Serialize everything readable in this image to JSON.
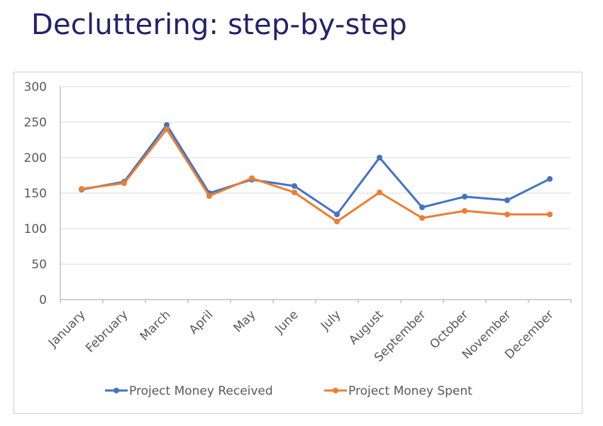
{
  "slide": {
    "title": "Decluttering: step-by-step"
  },
  "chart_data": {
    "type": "line",
    "categories": [
      "January",
      "February",
      "March",
      "April",
      "May",
      "June",
      "July",
      "August",
      "September",
      "October",
      "November",
      "December"
    ],
    "series": [
      {
        "name": "Project Money Received",
        "color": "#4472c4",
        "values": [
          155,
          166,
          246,
          150,
          169,
          160,
          120,
          200,
          130,
          145,
          140,
          170
        ]
      },
      {
        "name": "Project Money Spent",
        "color": "#ed7d31",
        "values": [
          156,
          164,
          240,
          146,
          171,
          151,
          110,
          151,
          115,
          125,
          120,
          120
        ]
      }
    ],
    "ylim": [
      0,
      300
    ],
    "yticks": [
      0,
      50,
      100,
      150,
      200,
      250,
      300
    ],
    "ytick_labels": [
      "0",
      "50",
      "100",
      "150",
      "200",
      "250",
      "300"
    ],
    "grid": true,
    "legend": "bottom",
    "gridline_color": "#d9d9d9",
    "axis_color": "#a6a6a6"
  }
}
